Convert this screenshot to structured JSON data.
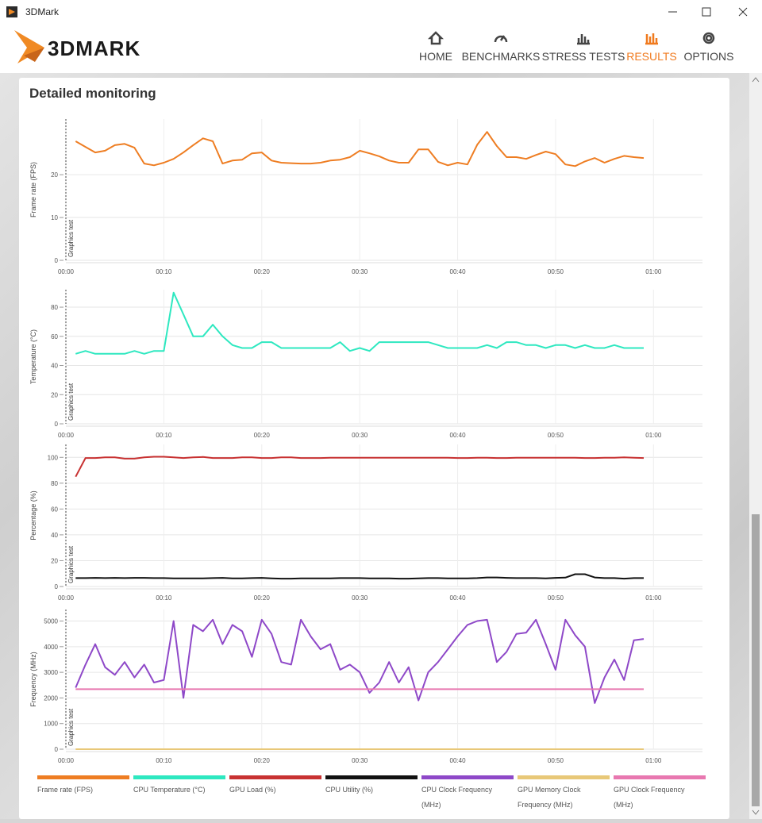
{
  "window": {
    "title": "3DMark"
  },
  "header": {
    "logo": "3DMARK",
    "nav": [
      "HOME",
      "BENCHMARKS",
      "STRESS TESTS",
      "RESULTS",
      "OPTIONS"
    ],
    "active_index": 3
  },
  "section_title": "Detailed monitoring",
  "chart_data": [
    {
      "type": "line",
      "y_label": "Frame rate (FPS)",
      "annotation": "Graphics test",
      "grid": true,
      "xlim": [
        0,
        65
      ],
      "xticks": [
        {
          "value": 0,
          "label": "00:00"
        },
        {
          "value": 10,
          "label": "00:10"
        },
        {
          "value": 20,
          "label": "00:20"
        },
        {
          "value": 30,
          "label": "00:30"
        },
        {
          "value": 40,
          "label": "00:40"
        },
        {
          "value": 50,
          "label": "00:50"
        },
        {
          "value": 60,
          "label": "01:00"
        }
      ],
      "ylim": [
        0,
        33
      ],
      "yticks": [
        0,
        10,
        20
      ],
      "x": [
        1,
        2,
        3,
        4,
        5,
        6,
        7,
        8,
        9,
        10,
        11,
        12,
        13,
        14,
        15,
        16,
        17,
        18,
        19,
        20,
        21,
        22,
        23,
        24,
        25,
        26,
        27,
        28,
        29,
        30,
        31,
        32,
        33,
        34,
        35,
        36,
        37,
        38,
        39,
        40,
        41,
        42,
        43,
        44,
        45,
        46,
        47,
        48,
        49,
        50,
        51,
        52,
        53,
        54,
        55,
        56,
        57,
        58,
        59
      ],
      "series": [
        {
          "name": "Frame rate (FPS)",
          "color": "#ee7d22",
          "values": [
            27.8,
            26.5,
            25.2,
            25.6,
            26.9,
            27.2,
            26.3,
            22.6,
            22.2,
            22.8,
            23.7,
            25.2,
            26.9,
            28.5,
            27.8,
            22.6,
            23.3,
            23.5,
            25,
            25.2,
            23.3,
            22.8,
            22.7,
            22.6,
            22.6,
            22.8,
            23.3,
            23.5,
            24.1,
            25.6,
            25,
            24.3,
            23.3,
            22.8,
            22.8,
            25.9,
            25.9,
            23,
            22.2,
            22.8,
            22.4,
            27,
            30,
            26.7,
            24.1,
            24.1,
            23.7,
            24.6,
            25.4,
            24.8,
            22.4,
            22,
            23.1,
            23.9,
            22.8,
            23.7,
            24.4,
            24.1,
            23.9
          ]
        }
      ]
    },
    {
      "type": "line",
      "y_label": "Temperature (°C)",
      "annotation": "Graphics test",
      "grid": true,
      "xlim": [
        0,
        65
      ],
      "xticks": [
        {
          "value": 0,
          "label": "00:00"
        },
        {
          "value": 10,
          "label": "00:10"
        },
        {
          "value": 20,
          "label": "00:20"
        },
        {
          "value": 30,
          "label": "00:30"
        },
        {
          "value": 40,
          "label": "00:40"
        },
        {
          "value": 50,
          "label": "00:50"
        },
        {
          "value": 60,
          "label": "01:00"
        }
      ],
      "ylim": [
        0,
        92
      ],
      "yticks": [
        0,
        20,
        40,
        60,
        80
      ],
      "x": [
        1,
        2,
        3,
        4,
        5,
        6,
        7,
        8,
        9,
        10,
        11,
        12,
        13,
        14,
        15,
        16,
        17,
        18,
        19,
        20,
        21,
        22,
        23,
        24,
        25,
        26,
        27,
        28,
        29,
        30,
        31,
        32,
        33,
        34,
        35,
        36,
        37,
        38,
        39,
        40,
        41,
        42,
        43,
        44,
        45,
        46,
        47,
        48,
        49,
        50,
        51,
        52,
        53,
        54,
        55,
        56,
        57,
        58,
        59
      ],
      "series": [
        {
          "name": "CPU Temperature (°C)",
          "color": "#2ee8c0",
          "values": [
            48,
            50,
            48,
            48,
            48,
            48,
            50,
            48,
            50,
            50,
            90,
            75,
            60,
            60,
            68,
            60,
            54,
            52,
            52,
            56,
            56,
            52,
            52,
            52,
            52,
            52,
            52,
            56,
            50,
            52,
            50,
            56,
            56,
            56,
            56,
            56,
            56,
            54,
            52,
            52,
            52,
            52,
            54,
            52,
            56,
            56,
            54,
            54,
            52,
            54,
            54,
            52,
            54,
            52,
            52,
            54,
            52,
            52,
            52
          ]
        }
      ]
    },
    {
      "type": "line",
      "y_label": "Percentage (%)",
      "annotation": "Graphics test",
      "grid": true,
      "xlim": [
        0,
        65
      ],
      "xticks": [
        {
          "value": 0,
          "label": "00:00"
        },
        {
          "value": 10,
          "label": "00:10"
        },
        {
          "value": 20,
          "label": "00:20"
        },
        {
          "value": 30,
          "label": "00:30"
        },
        {
          "value": 40,
          "label": "00:40"
        },
        {
          "value": 50,
          "label": "00:50"
        },
        {
          "value": 60,
          "label": "01:00"
        }
      ],
      "ylim": [
        0,
        110
      ],
      "yticks": [
        0,
        20,
        40,
        60,
        80,
        100
      ],
      "x": [
        1,
        2,
        3,
        4,
        5,
        6,
        7,
        8,
        9,
        10,
        11,
        12,
        13,
        14,
        15,
        16,
        17,
        18,
        19,
        20,
        21,
        22,
        23,
        24,
        25,
        26,
        27,
        28,
        29,
        30,
        31,
        32,
        33,
        34,
        35,
        36,
        37,
        38,
        39,
        40,
        41,
        42,
        43,
        44,
        45,
        46,
        47,
        48,
        49,
        50,
        51,
        52,
        53,
        54,
        55,
        56,
        57,
        58,
        59
      ],
      "series": [
        {
          "name": "GPU Load (%)",
          "color": "#c83232",
          "values": [
            85,
            99.5,
            99.5,
            100,
            100,
            99,
            99,
            100,
            100.5,
            100.5,
            100,
            99.5,
            100,
            100.3,
            99.5,
            99.5,
            99.5,
            100,
            100,
            99.5,
            99.5,
            100,
            100,
            99.5,
            99.5,
            99.5,
            99.7,
            99.7,
            99.7,
            99.7,
            99.7,
            99.7,
            99.7,
            99.7,
            99.7,
            99.7,
            99.7,
            99.7,
            99.7,
            99.5,
            99.5,
            99.7,
            99.7,
            99.5,
            99.5,
            99.7,
            99.7,
            99.7,
            99.7,
            99.7,
            99.7,
            99.7,
            99.5,
            99.5,
            99.7,
            99.7,
            100,
            99.7,
            99.5
          ]
        },
        {
          "name": "CPU Utility (%)",
          "color": "#111111",
          "values": [
            6.5,
            6.5,
            6.7,
            6.5,
            6.7,
            6.5,
            6.7,
            6.7,
            6.5,
            6.5,
            6.3,
            6.3,
            6.3,
            6.3,
            6.5,
            6.7,
            6.3,
            6.3,
            6.5,
            6.7,
            6.3,
            6.1,
            6.1,
            6.3,
            6.3,
            6.3,
            6.3,
            6.5,
            6.5,
            6.5,
            6.3,
            6.3,
            6.3,
            6.1,
            6.1,
            6.3,
            6.5,
            6.5,
            6.3,
            6.3,
            6.3,
            6.5,
            7.0,
            7.0,
            6.7,
            6.5,
            6.5,
            6.5,
            6.3,
            6.7,
            6.9,
            9.5,
            9.5,
            7.0,
            6.5,
            6.5,
            6.1,
            6.5,
            6.5
          ]
        }
      ]
    },
    {
      "type": "line",
      "y_label": "Frequency (MHz)",
      "annotation": "Graphics test",
      "grid": true,
      "xlim": [
        0,
        65
      ],
      "xticks": [
        {
          "value": 0,
          "label": "00:00"
        },
        {
          "value": 10,
          "label": "00:10"
        },
        {
          "value": 20,
          "label": "00:20"
        },
        {
          "value": 30,
          "label": "00:30"
        },
        {
          "value": 40,
          "label": "00:40"
        },
        {
          "value": 50,
          "label": "00:50"
        },
        {
          "value": 60,
          "label": "01:00"
        }
      ],
      "ylim": [
        0,
        5450
      ],
      "yticks": [
        0,
        1000,
        2000,
        3000,
        4000,
        5000
      ],
      "x": [
        1,
        2,
        3,
        4,
        5,
        6,
        7,
        8,
        9,
        10,
        11,
        12,
        13,
        14,
        15,
        16,
        17,
        18,
        19,
        20,
        21,
        22,
        23,
        24,
        25,
        26,
        27,
        28,
        29,
        30,
        31,
        32,
        33,
        34,
        35,
        36,
        37,
        38,
        39,
        40,
        41,
        42,
        43,
        44,
        45,
        46,
        47,
        48,
        49,
        50,
        51,
        52,
        53,
        54,
        55,
        56,
        57,
        58,
        59
      ],
      "series": [
        {
          "name": "CPU Clock Frequency (MHz)",
          "color": "#8e48c8",
          "values": [
            2400,
            3300,
            4100,
            3200,
            2900,
            3400,
            2800,
            3300,
            2600,
            2700,
            5000,
            2000,
            4850,
            4600,
            5050,
            4100,
            4850,
            4600,
            3600,
            5050,
            4500,
            3400,
            3300,
            5050,
            4400,
            3900,
            4100,
            3100,
            3300,
            3000,
            2200,
            2600,
            3400,
            2600,
            3200,
            1900,
            3000,
            3400,
            3900,
            4400,
            4850,
            5000,
            5050,
            3400,
            3800,
            4500,
            4550,
            5050,
            4100,
            3100,
            5050,
            4450,
            4000,
            1800,
            2800,
            3500,
            2700,
            4250,
            4300
          ]
        },
        {
          "name": "GPU Memory Clock Frequency (MHz)",
          "color": "#e8c878",
          "values": [
            0,
            0,
            0,
            0,
            0,
            0,
            0,
            0,
            0,
            0,
            0,
            0,
            0,
            0,
            0,
            0,
            0,
            0,
            0,
            0,
            0,
            0,
            0,
            0,
            0,
            0,
            0,
            0,
            0,
            0,
            0,
            0,
            0,
            0,
            0,
            0,
            0,
            0,
            0,
            0,
            0,
            0,
            0,
            0,
            0,
            0,
            0,
            0,
            0,
            0,
            0,
            0,
            0,
            0,
            0,
            0,
            0,
            0,
            0
          ]
        },
        {
          "name": "GPU Clock Frequency (MHz)",
          "color": "#e878b0",
          "values": [
            2340,
            2340,
            2340,
            2340,
            2340,
            2340,
            2340,
            2340,
            2340,
            2340,
            2340,
            2340,
            2340,
            2340,
            2340,
            2340,
            2340,
            2340,
            2340,
            2340,
            2340,
            2340,
            2340,
            2340,
            2340,
            2340,
            2340,
            2340,
            2340,
            2340,
            2340,
            2340,
            2340,
            2340,
            2340,
            2340,
            2340,
            2340,
            2340,
            2340,
            2340,
            2340,
            2340,
            2340,
            2340,
            2340,
            2340,
            2340,
            2340,
            2340,
            2340,
            2340,
            2340,
            2340,
            2340,
            2340,
            2340,
            2340,
            2340
          ]
        }
      ]
    }
  ]
}
